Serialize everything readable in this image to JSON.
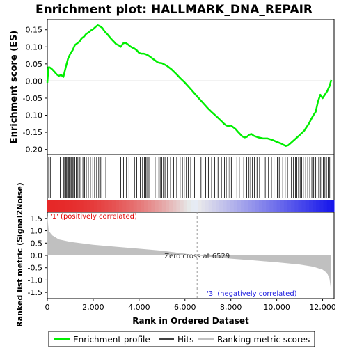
{
  "chart_data": {
    "type": "line",
    "title": "Enrichment plot: HALLMARK_DNA_REPAIR",
    "xlabel": "Rank in Ordered Dataset",
    "xlim": [
      0,
      12500
    ],
    "x_ticks": [
      0,
      2000,
      4000,
      6000,
      8000,
      10000,
      12000
    ],
    "x_tick_labels": [
      "0",
      "2,000",
      "4,000",
      "6,000",
      "8,000",
      "10,000",
      "12,000"
    ],
    "panels": {
      "es": {
        "ylabel": "Enrichment score (ES)",
        "ylim": [
          -0.215,
          0.18
        ],
        "y_ticks": [
          0.15,
          0.1,
          0.05,
          0.0,
          -0.05,
          -0.1,
          -0.15,
          -0.2
        ],
        "y_tick_labels": [
          "0.15",
          "0.10",
          "0.05",
          "0.00",
          "-0.05",
          "-0.10",
          "-0.15",
          "-0.20"
        ],
        "grid": false
      },
      "metric": {
        "ylabel": "Ranked list metric (Signal2Noise)",
        "ylim": [
          -1.75,
          1.75
        ],
        "y_ticks": [
          1.5,
          1.0,
          0.5,
          0.0,
          -0.5,
          -1.0,
          -1.5
        ],
        "y_tick_labels": [
          "1.5",
          "1.0",
          "0.5",
          "0.0",
          "-0.5",
          "-1.0",
          "-1.5"
        ],
        "metric_curve": [
          [
            0,
            1.6
          ],
          [
            60,
            1.0
          ],
          [
            200,
            0.82
          ],
          [
            500,
            0.65
          ],
          [
            1000,
            0.55
          ],
          [
            2000,
            0.43
          ],
          [
            3000,
            0.35
          ],
          [
            4000,
            0.27
          ],
          [
            5000,
            0.19
          ],
          [
            6000,
            0.07
          ],
          [
            6529,
            0.0
          ],
          [
            7000,
            -0.05
          ],
          [
            8000,
            -0.13
          ],
          [
            9000,
            -0.2
          ],
          [
            10000,
            -0.28
          ],
          [
            11000,
            -0.37
          ],
          [
            11600,
            -0.46
          ],
          [
            12000,
            -0.58
          ],
          [
            12200,
            -0.72
          ],
          [
            12300,
            -0.95
          ],
          [
            12350,
            -1.3
          ],
          [
            12380,
            -1.68
          ]
        ],
        "zero_cross_label": "Zero cross at 6529",
        "zero_cross_x": 6529,
        "positive_label": "'1' (positively correlated)",
        "negative_label": "'3' (negatively correlated)"
      }
    },
    "series": [
      {
        "name": "Enrichment profile",
        "color": "#00ee00",
        "x": [
          0,
          50,
          100,
          200,
          300,
          400,
          500,
          600,
          700,
          800,
          900,
          1000,
          1100,
          1200,
          1300,
          1400,
          1500,
          1600,
          1700,
          1800,
          1900,
          2000,
          2100,
          2200,
          2300,
          2400,
          2500,
          2600,
          2700,
          2800,
          2900,
          3000,
          3100,
          3200,
          3300,
          3400,
          3500,
          3600,
          3700,
          3800,
          3900,
          4000,
          4100,
          4200,
          4300,
          4400,
          4500,
          4600,
          4700,
          4800,
          4900,
          5000,
          5200,
          5400,
          5600,
          5800,
          6000,
          6200,
          6400,
          6529,
          6600,
          6800,
          7000,
          7200,
          7400,
          7600,
          7700,
          7800,
          7900,
          8000,
          8100,
          8200,
          8300,
          8400,
          8500,
          8600,
          8700,
          8800,
          8900,
          9000,
          9200,
          9400,
          9600,
          9800,
          10000,
          10200,
          10300,
          10400,
          10500,
          10600,
          10800,
          11000,
          11200,
          11400,
          11500,
          11600,
          11700,
          11800,
          11900,
          12000,
          12100,
          12200,
          12300,
          12380
        ],
        "y": [
          -0.005,
          0.04,
          0.04,
          0.035,
          0.028,
          0.02,
          0.015,
          0.018,
          0.012,
          0.04,
          0.065,
          0.08,
          0.09,
          0.105,
          0.11,
          0.115,
          0.125,
          0.13,
          0.138,
          0.142,
          0.148,
          0.152,
          0.158,
          0.163,
          0.16,
          0.155,
          0.145,
          0.138,
          0.13,
          0.122,
          0.115,
          0.108,
          0.105,
          0.1,
          0.11,
          0.112,
          0.108,
          0.102,
          0.098,
          0.095,
          0.09,
          0.082,
          0.08,
          0.08,
          0.078,
          0.075,
          0.07,
          0.065,
          0.06,
          0.055,
          0.053,
          0.052,
          0.045,
          0.035,
          0.022,
          0.008,
          -0.005,
          -0.02,
          -0.035,
          -0.045,
          -0.05,
          -0.065,
          -0.08,
          -0.093,
          -0.105,
          -0.118,
          -0.125,
          -0.13,
          -0.132,
          -0.13,
          -0.135,
          -0.14,
          -0.148,
          -0.155,
          -0.162,
          -0.165,
          -0.163,
          -0.157,
          -0.155,
          -0.16,
          -0.165,
          -0.168,
          -0.168,
          -0.172,
          -0.178,
          -0.183,
          -0.187,
          -0.19,
          -0.188,
          -0.182,
          -0.17,
          -0.158,
          -0.145,
          -0.125,
          -0.112,
          -0.1,
          -0.09,
          -0.06,
          -0.04,
          -0.05,
          -0.04,
          -0.03,
          -0.015,
          0.003
        ]
      },
      {
        "name": "Hits",
        "color": "#000000",
        "positions": [
          60,
          130,
          560,
          720,
          760,
          800,
          840,
          880,
          920,
          960,
          1000,
          1040,
          1100,
          1150,
          1200,
          1260,
          1330,
          1400,
          1460,
          1550,
          1620,
          1700,
          1790,
          1880,
          1980,
          2060,
          2150,
          2240,
          2330,
          2550,
          3200,
          3260,
          3320,
          3380,
          3450,
          3560,
          3800,
          3900,
          4050,
          4150,
          4230,
          4290,
          4340,
          4400,
          4460,
          4700,
          4780,
          4860,
          4920,
          4990,
          5060,
          5130,
          5240,
          5370,
          5510,
          5640,
          5790,
          5890,
          5970,
          6060,
          6140,
          6250,
          6420,
          6700,
          6780,
          6900,
          7020,
          7160,
          7300,
          7440,
          7590,
          7720,
          7800,
          7880,
          7950,
          8020,
          8260,
          8370,
          8560,
          8690,
          8790,
          8860,
          8940,
          9030,
          9140,
          9250,
          9360,
          9500,
          9640,
          9770,
          9880,
          10030,
          10110,
          10260,
          10370,
          10470,
          10570,
          10640,
          10730,
          10820,
          10880,
          10950,
          11020,
          11090,
          11160,
          11260,
          11350,
          11440,
          11530,
          11610,
          11700,
          11760,
          11830,
          11900,
          11960,
          12030,
          12100,
          12170,
          12240,
          12310
        ]
      },
      {
        "name": "Ranking metric scores",
        "color": "#c0c0c0"
      }
    ],
    "legend_position": "bottom"
  }
}
